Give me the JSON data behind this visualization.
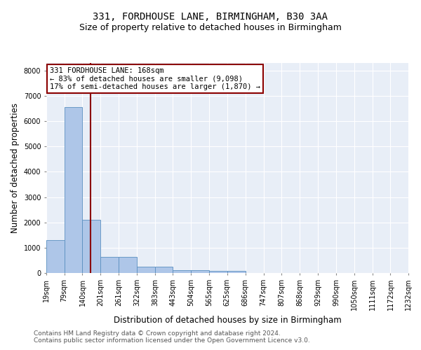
{
  "title": "331, FORDHOUSE LANE, BIRMINGHAM, B30 3AA",
  "subtitle": "Size of property relative to detached houses in Birmingham",
  "xlabel": "Distribution of detached houses by size in Birmingham",
  "ylabel": "Number of detached properties",
  "footnote1": "Contains HM Land Registry data © Crown copyright and database right 2024.",
  "footnote2": "Contains public sector information licensed under the Open Government Licence v3.0.",
  "bar_edges": [
    19,
    79,
    140,
    201,
    261,
    322,
    383,
    443,
    504,
    565,
    625,
    686,
    747,
    807,
    868,
    929,
    990,
    1050,
    1111,
    1172,
    1232
  ],
  "bar_heights": [
    1310,
    6550,
    2090,
    650,
    640,
    250,
    240,
    120,
    115,
    80,
    85,
    0,
    0,
    0,
    0,
    0,
    0,
    0,
    0,
    0
  ],
  "bar_color": "#aec6e8",
  "bar_edge_color": "#5a8fc0",
  "vline_x": 168,
  "vline_color": "#8b0000",
  "annotation_line1": "331 FORDHOUSE LANE: 168sqm",
  "annotation_line2": "← 83% of detached houses are smaller (9,098)",
  "annotation_line3": "17% of semi-detached houses are larger (1,870) →",
  "annotation_box_color": "#8b0000",
  "ylim": [
    0,
    8300
  ],
  "yticks": [
    0,
    1000,
    2000,
    3000,
    4000,
    5000,
    6000,
    7000,
    8000
  ],
  "bg_color": "#e8eef7",
  "grid_color": "#ffffff",
  "title_fontsize": 10,
  "subtitle_fontsize": 9,
  "axis_label_fontsize": 8.5,
  "tick_fontsize": 7,
  "annotation_fontsize": 7.5,
  "footnote_fontsize": 6.5
}
